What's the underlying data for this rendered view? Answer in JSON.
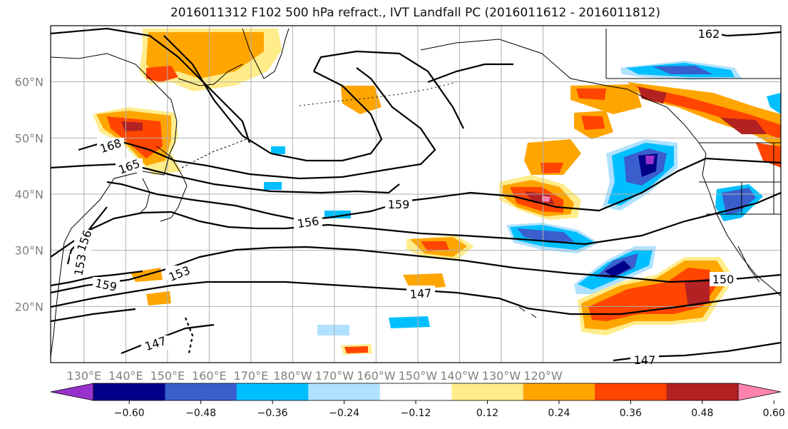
{
  "title": "2016011312 F102 500 hPa refract., IVT Landfall PC (2016011612 - 2016011812)",
  "axes": {
    "lon_ticks": [
      "130°E",
      "140°E",
      "150°E",
      "160°E",
      "170°E",
      "180°W",
      "170°W",
      "160°W",
      "150°W",
      "140°W",
      "130°W",
      "120°W"
    ],
    "lat_ticks": [
      "60°N",
      "50°N",
      "40°N",
      "30°N",
      "20°N"
    ],
    "lon_range": [
      122,
      297
    ],
    "lat_range": [
      10,
      70
    ]
  },
  "colorbar": {
    "labels": [
      "−0.60",
      "−0.48",
      "−0.36",
      "−0.24",
      "−0.12",
      "0.12",
      "0.24",
      "0.36",
      "0.48",
      "0.60"
    ],
    "colors": [
      "#9932cc",
      "#00008b",
      "#3a5fcd",
      "#00bfff",
      "#b0e2ff",
      "#ffffff",
      "#ffec8b",
      "#ffa500",
      "#ff4500",
      "#b22222",
      "#ff82ab"
    ]
  },
  "contour_labels": [
    {
      "text": "168"
    },
    {
      "text": "165"
    },
    {
      "text": "162"
    },
    {
      "text": "159"
    },
    {
      "text": "159"
    },
    {
      "text": "156"
    },
    {
      "text": "156"
    },
    {
      "text": "153"
    },
    {
      "text": "153"
    },
    {
      "text": "150"
    },
    {
      "text": "147"
    },
    {
      "text": "147"
    },
    {
      "text": "147"
    }
  ]
}
